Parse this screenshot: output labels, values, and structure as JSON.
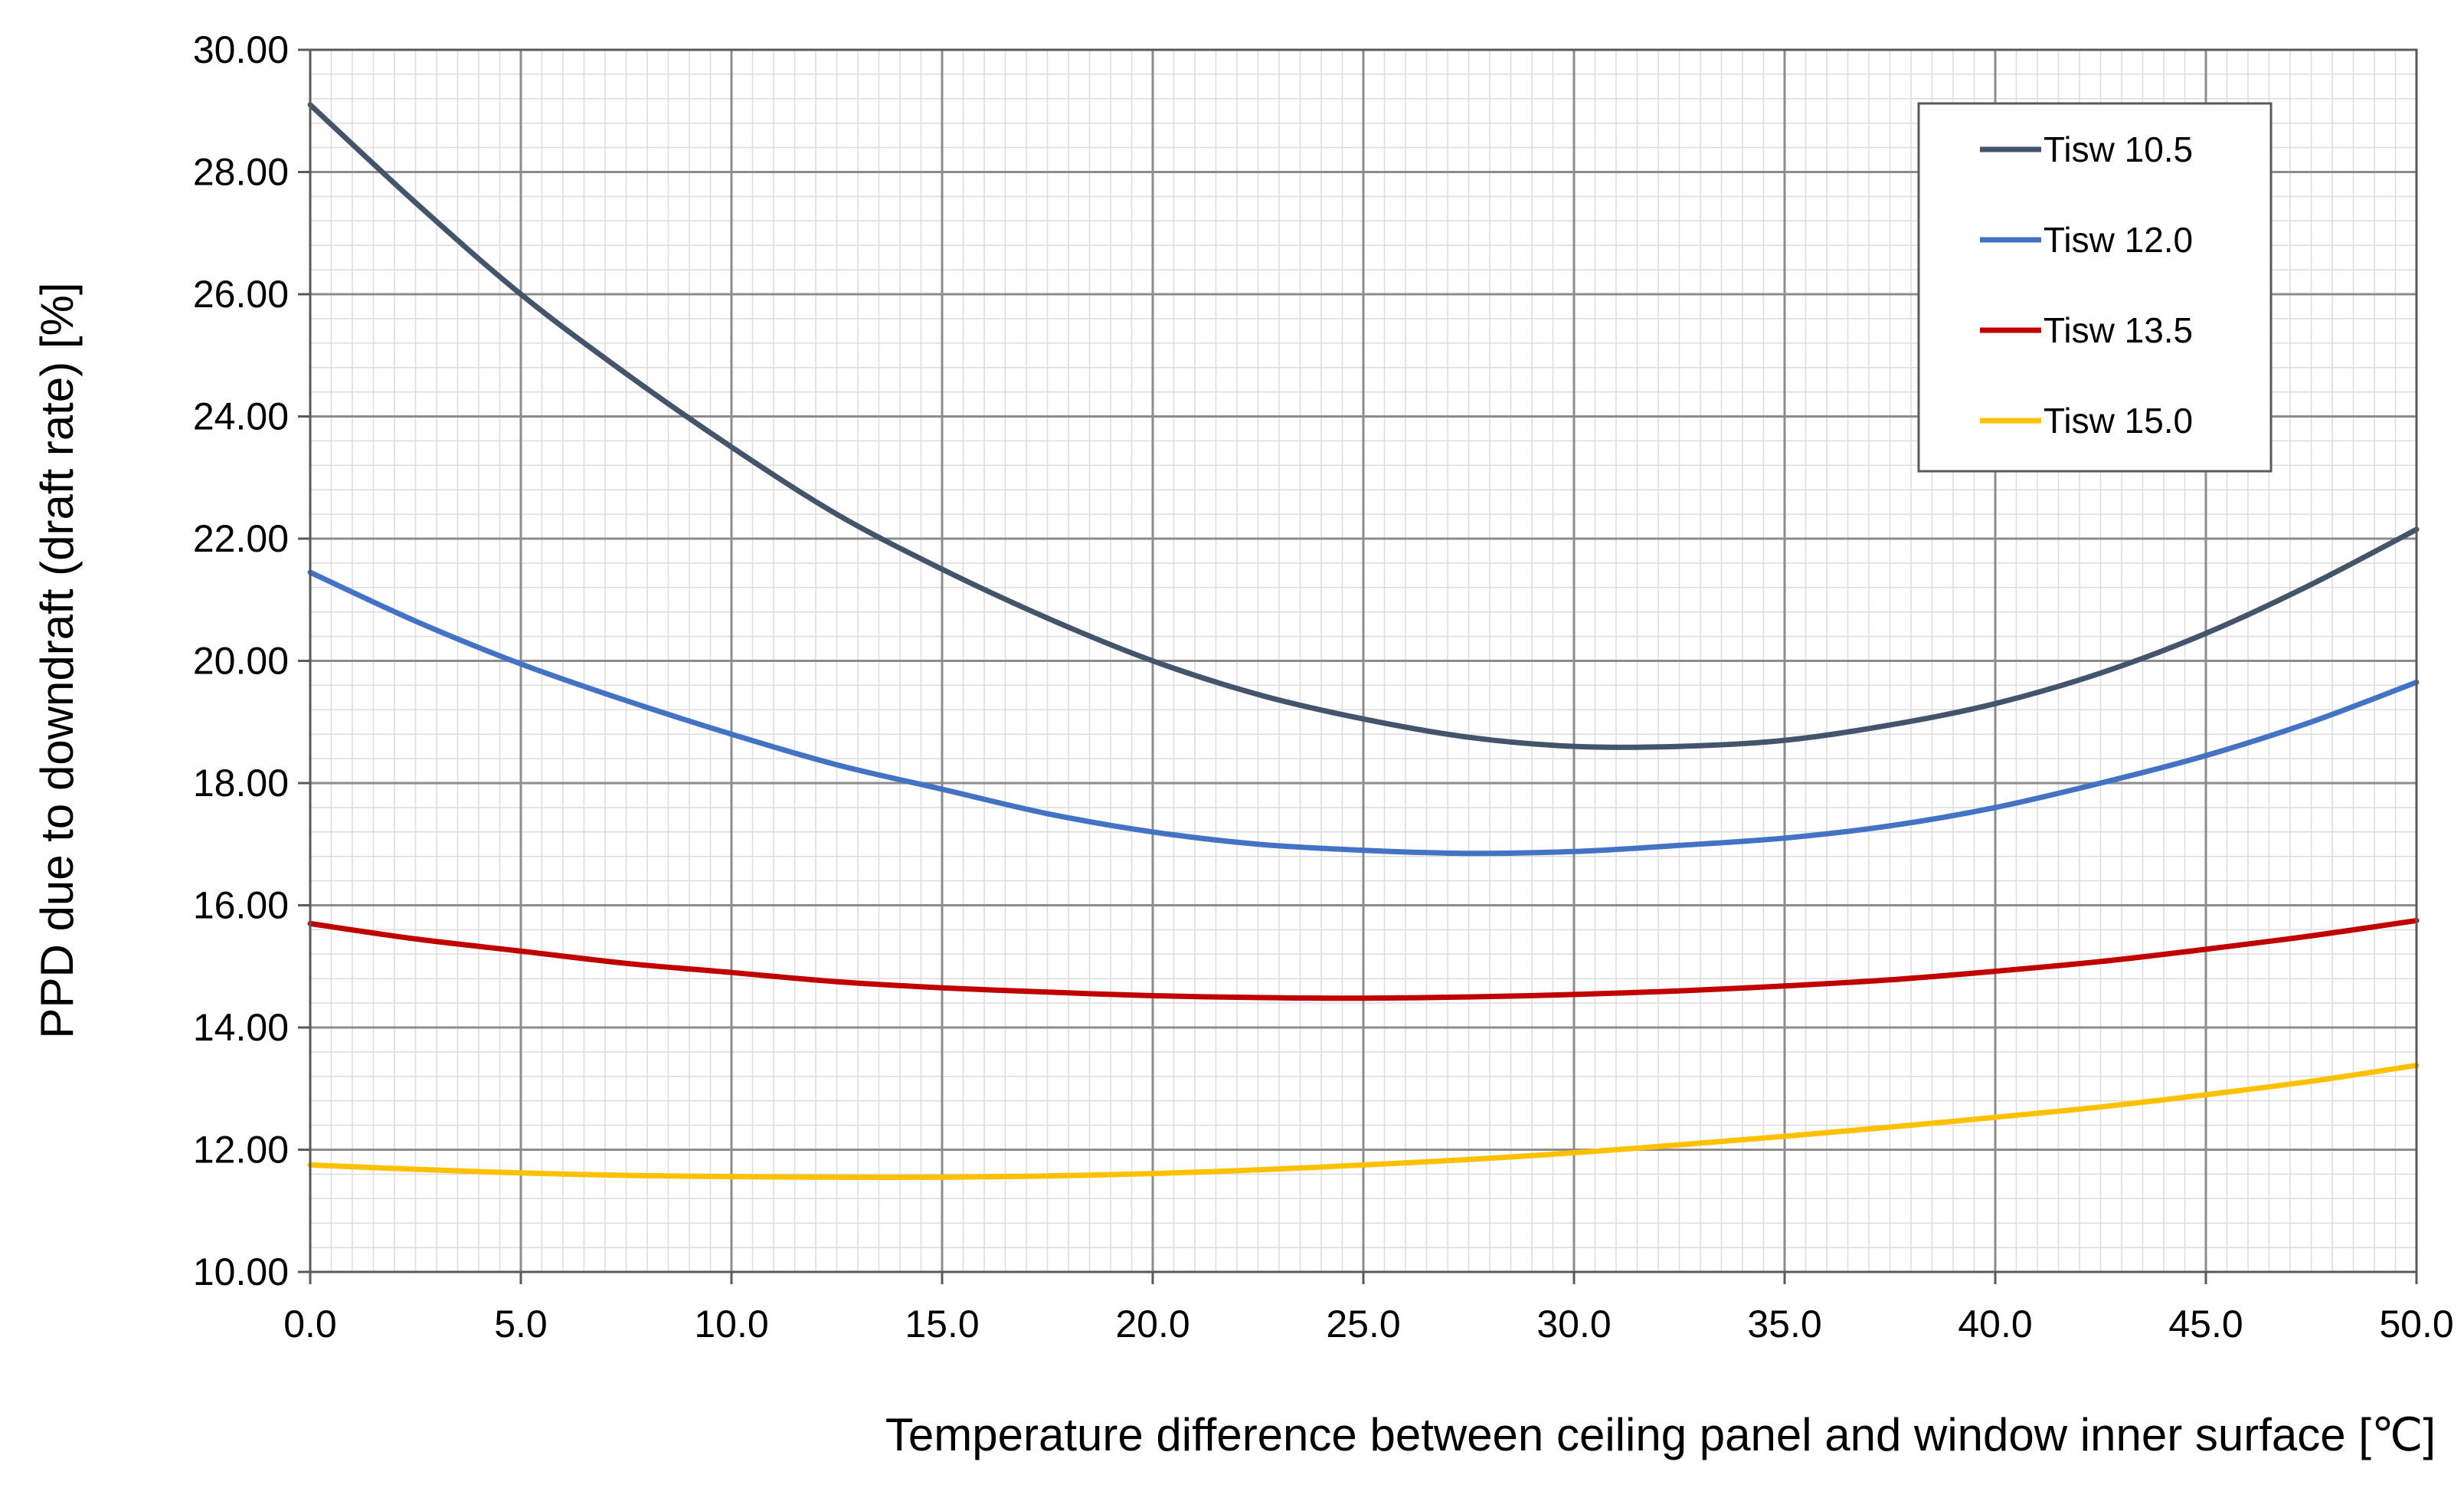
{
  "chart_data": {
    "type": "line",
    "title": "",
    "xlabel": "Temperature difference between ceiling panel and window inner surface [℃]",
    "ylabel": "PPD due to downdraft (draft rate) [%]",
    "xlim": [
      0,
      50
    ],
    "ylim": [
      10,
      30
    ],
    "x_ticks": [
      "0.0",
      "5.0",
      "10.0",
      "15.0",
      "20.0",
      "25.0",
      "30.0",
      "35.0",
      "40.0",
      "45.0",
      "50.0"
    ],
    "y_ticks": [
      "10.00",
      "12.00",
      "14.00",
      "16.00",
      "18.00",
      "20.00",
      "22.00",
      "24.00",
      "26.00",
      "28.00",
      "30.00"
    ],
    "grid": true,
    "legend_position": "top-right",
    "x": [
      0,
      2.5,
      5,
      7.5,
      10,
      12.5,
      15,
      17.5,
      20,
      22.5,
      25,
      27.5,
      30,
      32.5,
      35,
      37.5,
      40,
      42.5,
      45,
      47.5,
      50
    ],
    "series": [
      {
        "name": "Tisw 10.5",
        "color": "#44546a",
        "values": [
          29.1,
          27.5,
          26.0,
          24.7,
          23.5,
          22.4,
          21.5,
          20.7,
          20.0,
          19.45,
          19.05,
          18.75,
          18.6,
          18.6,
          18.7,
          18.95,
          19.3,
          19.8,
          20.45,
          21.25,
          22.15
        ]
      },
      {
        "name": "Tisw 12.0",
        "color": "#4472c4",
        "values": [
          21.45,
          20.65,
          19.95,
          19.35,
          18.8,
          18.3,
          17.9,
          17.5,
          17.2,
          17.0,
          16.9,
          16.85,
          16.88,
          16.98,
          17.1,
          17.3,
          17.6,
          18.0,
          18.45,
          19.0,
          19.65
        ]
      },
      {
        "name": "Tisw 13.5",
        "color": "#c00000",
        "values": [
          15.7,
          15.45,
          15.25,
          15.05,
          14.9,
          14.75,
          14.65,
          14.58,
          14.52,
          14.49,
          14.48,
          14.5,
          14.54,
          14.6,
          14.68,
          14.78,
          14.92,
          15.08,
          15.28,
          15.5,
          15.75
        ]
      },
      {
        "name": "Tisw 15.0",
        "color": "#ffc000",
        "values": [
          11.75,
          11.68,
          11.62,
          11.58,
          11.56,
          11.55,
          11.55,
          11.57,
          11.61,
          11.67,
          11.75,
          11.84,
          11.95,
          12.08,
          12.22,
          12.37,
          12.53,
          12.7,
          12.9,
          13.12,
          13.38
        ]
      }
    ]
  }
}
